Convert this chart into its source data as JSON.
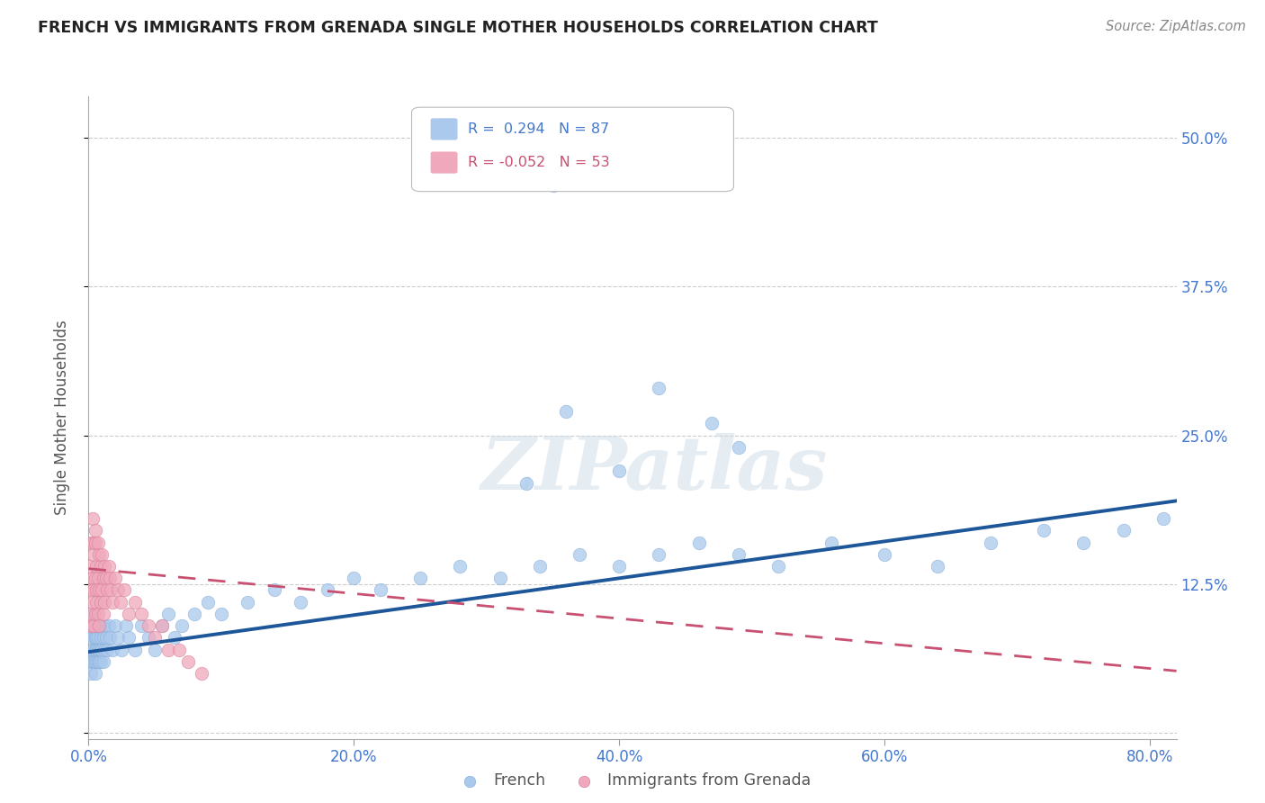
{
  "title": "FRENCH VS IMMIGRANTS FROM GRENADA SINGLE MOTHER HOUSEHOLDS CORRELATION CHART",
  "source": "Source: ZipAtlas.com",
  "ylabel": "Single Mother Households",
  "xlim": [
    0,
    0.82
  ],
  "ylim": [
    -0.005,
    0.535
  ],
  "xticks": [
    0.0,
    0.2,
    0.4,
    0.6,
    0.8
  ],
  "xtick_labels": [
    "0.0%",
    "20.0%",
    "40.0%",
    "60.0%",
    "80.0%"
  ],
  "yticks": [
    0.0,
    0.125,
    0.25,
    0.375,
    0.5
  ],
  "ytick_labels": [
    "",
    "12.5%",
    "25.0%",
    "37.5%",
    "50.0%"
  ],
  "french_color": "#aac9ed",
  "french_edge_color": "#8ab0d8",
  "french_line_color": "#1e5799",
  "grenada_color": "#f0a8bc",
  "grenada_edge_color": "#d88099",
  "grenada_line_color": "#c85070",
  "background_color": "#ffffff",
  "grid_color": "#cccccc",
  "title_color": "#222222",
  "tick_label_color": "#4477cc",
  "source_color": "#888888",
  "watermark_text": "ZIPatlas",
  "legend_label_french": "R =  0.294   N = 87",
  "legend_label_grenada": "R = -0.052   N = 53",
  "bottom_legend_french": "French",
  "bottom_legend_grenada": "Immigrants from Grenada",
  "french_x": [
    0.001,
    0.002,
    0.002,
    0.003,
    0.003,
    0.003,
    0.004,
    0.004,
    0.004,
    0.004,
    0.005,
    0.005,
    0.005,
    0.005,
    0.005,
    0.006,
    0.006,
    0.006,
    0.006,
    0.007,
    0.007,
    0.007,
    0.007,
    0.008,
    0.008,
    0.008,
    0.009,
    0.009,
    0.009,
    0.01,
    0.01,
    0.011,
    0.011,
    0.012,
    0.012,
    0.013,
    0.014,
    0.015,
    0.016,
    0.018,
    0.02,
    0.022,
    0.025,
    0.028,
    0.03,
    0.035,
    0.04,
    0.045,
    0.05,
    0.055,
    0.06,
    0.065,
    0.07,
    0.08,
    0.09,
    0.1,
    0.12,
    0.14,
    0.16,
    0.18,
    0.2,
    0.22,
    0.25,
    0.28,
    0.31,
    0.34,
    0.37,
    0.4,
    0.43,
    0.46,
    0.49,
    0.52,
    0.56,
    0.6,
    0.64,
    0.68,
    0.72,
    0.75,
    0.78,
    0.81,
    0.36,
    0.47,
    0.33,
    0.43,
    0.49,
    0.4,
    0.35
  ],
  "french_y": [
    0.06,
    0.08,
    0.05,
    0.07,
    0.09,
    0.06,
    0.08,
    0.07,
    0.1,
    0.06,
    0.09,
    0.07,
    0.08,
    0.06,
    0.05,
    0.07,
    0.09,
    0.06,
    0.08,
    0.07,
    0.09,
    0.06,
    0.08,
    0.07,
    0.06,
    0.09,
    0.08,
    0.07,
    0.06,
    0.09,
    0.07,
    0.08,
    0.06,
    0.09,
    0.07,
    0.08,
    0.07,
    0.09,
    0.08,
    0.07,
    0.09,
    0.08,
    0.07,
    0.09,
    0.08,
    0.07,
    0.09,
    0.08,
    0.07,
    0.09,
    0.1,
    0.08,
    0.09,
    0.1,
    0.11,
    0.1,
    0.11,
    0.12,
    0.11,
    0.12,
    0.13,
    0.12,
    0.13,
    0.14,
    0.13,
    0.14,
    0.15,
    0.14,
    0.15,
    0.16,
    0.15,
    0.14,
    0.16,
    0.15,
    0.14,
    0.16,
    0.17,
    0.16,
    0.17,
    0.18,
    0.27,
    0.26,
    0.21,
    0.29,
    0.24,
    0.22,
    0.46
  ],
  "grenada_x": [
    0.001,
    0.001,
    0.002,
    0.002,
    0.002,
    0.003,
    0.003,
    0.003,
    0.004,
    0.004,
    0.004,
    0.004,
    0.005,
    0.005,
    0.005,
    0.005,
    0.006,
    0.006,
    0.006,
    0.007,
    0.007,
    0.007,
    0.008,
    0.008,
    0.008,
    0.009,
    0.009,
    0.01,
    0.01,
    0.011,
    0.011,
    0.012,
    0.012,
    0.013,
    0.014,
    0.015,
    0.016,
    0.017,
    0.018,
    0.02,
    0.022,
    0.024,
    0.027,
    0.03,
    0.035,
    0.04,
    0.045,
    0.05,
    0.055,
    0.06,
    0.068,
    0.075,
    0.085
  ],
  "grenada_y": [
    0.1,
    0.14,
    0.12,
    0.16,
    0.09,
    0.18,
    0.13,
    0.11,
    0.16,
    0.12,
    0.09,
    0.15,
    0.17,
    0.13,
    0.1,
    0.16,
    0.14,
    0.11,
    0.12,
    0.16,
    0.13,
    0.1,
    0.15,
    0.12,
    0.09,
    0.14,
    0.11,
    0.15,
    0.12,
    0.13,
    0.1,
    0.14,
    0.11,
    0.13,
    0.12,
    0.14,
    0.13,
    0.12,
    0.11,
    0.13,
    0.12,
    0.11,
    0.12,
    0.1,
    0.11,
    0.1,
    0.09,
    0.08,
    0.09,
    0.07,
    0.07,
    0.06,
    0.05
  ],
  "french_line_x": [
    0.0,
    0.82
  ],
  "french_line_y": [
    0.068,
    0.195
  ],
  "grenada_line_x": [
    0.0,
    0.82
  ],
  "grenada_line_y": [
    0.138,
    0.052
  ]
}
